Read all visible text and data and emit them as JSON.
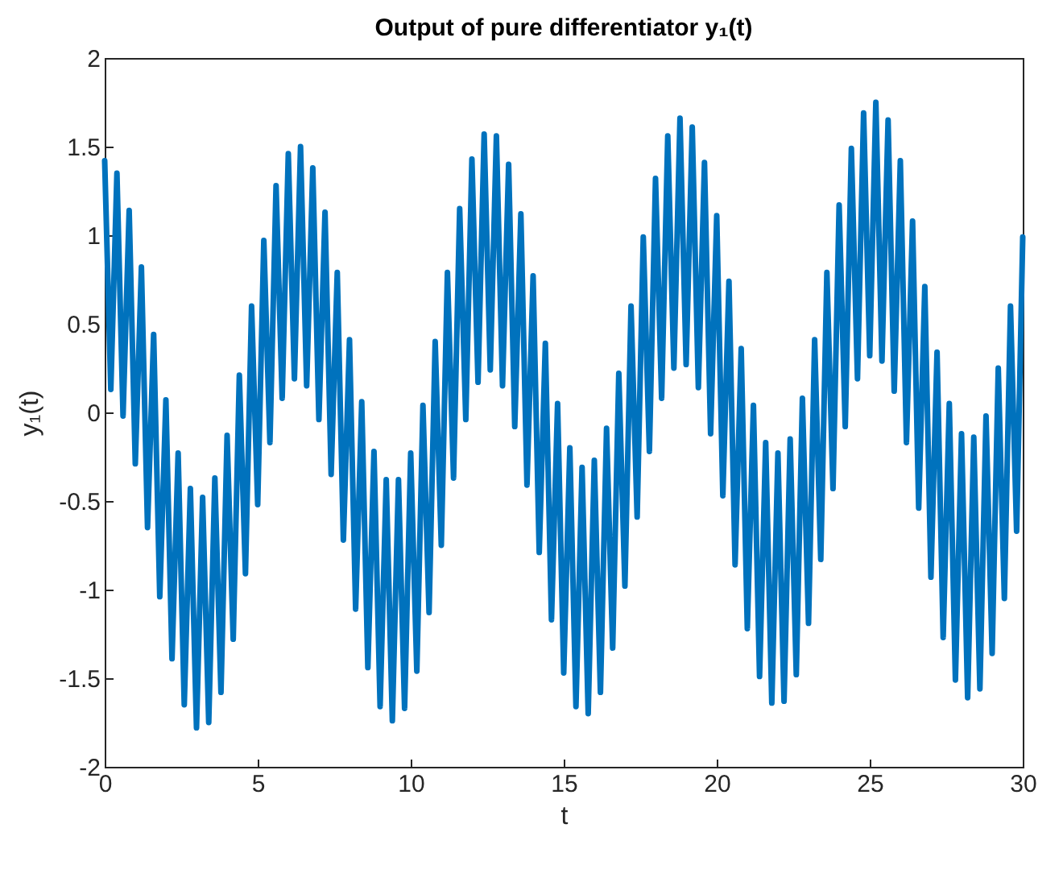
{
  "chart_data": {
    "type": "line",
    "title": "Output of pure differentiator y₁(t)",
    "xlabel": "t",
    "ylabel": "y₁(t)",
    "xlim": [
      0,
      30
    ],
    "xticks": [
      0,
      5,
      10,
      15,
      20,
      25,
      30
    ],
    "ylim": [
      -2,
      2
    ],
    "yticks": [
      -2,
      -1.5,
      -1,
      -0.5,
      0,
      0.5,
      1,
      1.5,
      2
    ],
    "grid": false,
    "marker": "none",
    "line_style": "solid",
    "x": [
      0,
      0.2,
      0.4,
      0.6,
      0.8,
      1,
      1.2,
      1.4,
      1.6,
      1.8,
      2,
      2.2,
      2.4,
      2.6,
      2.8,
      3,
      3.2,
      3.4,
      3.6,
      3.8,
      4,
      4.2,
      4.4,
      4.6,
      4.8,
      5,
      5.2,
      5.4,
      5.6,
      5.8,
      6,
      6.2,
      6.4,
      6.6,
      6.8,
      7,
      7.2,
      7.4,
      7.6,
      7.8,
      8,
      8.2,
      8.4,
      8.6,
      8.8,
      9,
      9.2,
      9.4,
      9.6,
      9.8,
      10,
      10.2,
      10.4,
      10.6,
      10.8,
      11,
      11.2,
      11.4,
      11.6,
      11.8,
      12,
      12.2,
      12.4,
      12.6,
      12.8,
      13,
      13.2,
      13.4,
      13.6,
      13.8,
      14,
      14.2,
      14.4,
      14.6,
      14.8,
      15,
      15.2,
      15.4,
      15.6,
      15.8,
      16,
      16.2,
      16.4,
      16.6,
      16.8,
      17,
      17.2,
      17.4,
      17.6,
      17.8,
      18,
      18.2,
      18.4,
      18.6,
      18.8,
      19,
      19.2,
      19.4,
      19.6,
      19.8,
      20,
      20.2,
      20.4,
      20.6,
      20.8,
      21,
      21.2,
      21.4,
      21.6,
      21.8,
      22,
      22.2,
      22.4,
      22.6,
      22.8,
      23,
      23.2,
      23.4,
      23.6,
      23.8,
      24,
      24.2,
      24.4,
      24.6,
      24.8,
      25,
      25.2,
      25.4,
      25.6,
      25.8,
      26,
      26.2,
      26.4,
      26.6,
      26.8,
      27,
      27.2,
      27.4,
      27.6,
      27.8,
      28,
      28.2,
      28.4,
      28.6,
      28.8,
      29,
      29.2,
      29.4,
      29.6,
      29.8,
      30
    ],
    "series": [
      {
        "color": "#0072bd",
        "values": [
          1.42,
          0.13,
          1.35,
          -0.02,
          1.14,
          -0.29,
          0.82,
          -0.65,
          0.44,
          -1.04,
          0.07,
          -1.39,
          -0.23,
          -1.65,
          -0.43,
          -1.78,
          -0.48,
          -1.75,
          -0.37,
          -1.58,
          -0.13,
          -1.28,
          0.21,
          -0.91,
          0.6,
          -0.52,
          0.97,
          -0.17,
          1.28,
          0.08,
          1.46,
          0.19,
          1.5,
          0.15,
          1.38,
          -0.04,
          1.13,
          -0.35,
          0.79,
          -0.72,
          0.41,
          -1.11,
          0.06,
          -1.44,
          -0.22,
          -1.66,
          -0.38,
          -1.74,
          -0.38,
          -1.67,
          -0.23,
          -1.46,
          0.04,
          -1.13,
          0.4,
          -0.75,
          0.79,
          -0.37,
          1.15,
          -0.04,
          1.43,
          0.17,
          1.57,
          0.24,
          1.56,
          0.15,
          1.4,
          -0.08,
          1.12,
          -0.41,
          0.77,
          -0.79,
          0.39,
          -1.17,
          0.05,
          -1.47,
          -0.2,
          -1.66,
          -0.31,
          -1.7,
          -0.27,
          -1.58,
          -0.09,
          -1.33,
          0.22,
          -0.98,
          0.6,
          -0.59,
          0.99,
          -0.22,
          1.32,
          0.08,
          1.56,
          0.25,
          1.66,
          0.27,
          1.61,
          0.14,
          1.41,
          -0.12,
          1.11,
          -0.47,
          0.74,
          -0.86,
          0.36,
          -1.22,
          0.04,
          -1.49,
          -0.17,
          -1.64,
          -0.23,
          -1.63,
          -0.15,
          -1.48,
          0.08,
          -1.19,
          0.41,
          -0.83,
          0.79,
          -0.43,
          1.17,
          -0.08,
          1.49,
          0.19,
          1.69,
          0.32,
          1.75,
          0.29,
          1.65,
          0.12,
          1.42,
          -0.17,
          1.08,
          -0.54,
          0.71,
          -0.93,
          0.34,
          -1.27,
          0.05,
          -1.51,
          -0.12,
          -1.61,
          -0.14,
          -1.56,
          -0.02,
          -1.36,
          0.25,
          -1.05,
          0.6,
          -0.67,
          0.99
        ]
      }
    ]
  }
}
